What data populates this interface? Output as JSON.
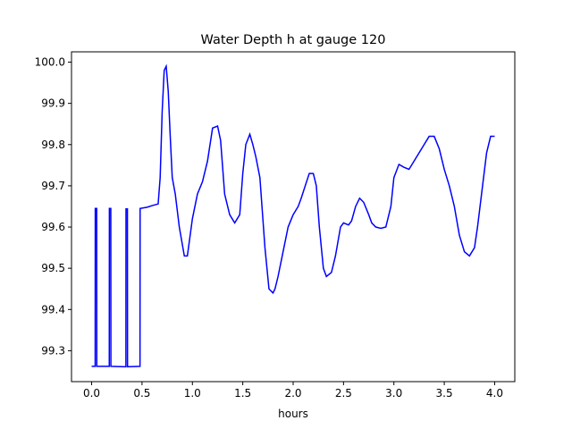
{
  "chart_data": {
    "type": "line",
    "title": "Water Depth h at gauge 120",
    "xlabel": "hours",
    "ylabel": "",
    "xlim": [
      -0.2,
      4.2
    ],
    "ylim": [
      99.225,
      100.025
    ],
    "xticks": [
      0.0,
      0.5,
      1.0,
      1.5,
      2.0,
      2.5,
      3.0,
      3.5,
      4.0
    ],
    "xtick_labels": [
      "0.0",
      "0.5",
      "1.0",
      "1.5",
      "2.0",
      "2.5",
      "3.0",
      "3.5",
      "4.0"
    ],
    "yticks": [
      99.3,
      99.4,
      99.5,
      99.6,
      99.7,
      99.8,
      99.9,
      100.0
    ],
    "ytick_labels": [
      "99.3",
      "99.4",
      "99.5",
      "99.6",
      "99.7",
      "99.8",
      "99.9",
      "100.0"
    ],
    "grid": false,
    "legend": "none",
    "series": [
      {
        "color": "#0000ff",
        "x": [
          0.0,
          0.035,
          0.036,
          0.05,
          0.051,
          0.175,
          0.176,
          0.19,
          0.191,
          0.34,
          0.341,
          0.355,
          0.356,
          0.48,
          0.481,
          0.55,
          0.6,
          0.66,
          0.68,
          0.7,
          0.72,
          0.74,
          0.76,
          0.78,
          0.8,
          0.83,
          0.87,
          0.92,
          0.95,
          1.0,
          1.05,
          1.1,
          1.15,
          1.2,
          1.25,
          1.28,
          1.32,
          1.37,
          1.42,
          1.47,
          1.5,
          1.53,
          1.57,
          1.6,
          1.63,
          1.67,
          1.72,
          1.76,
          1.8,
          1.82,
          1.85,
          1.9,
          1.95,
          2.0,
          2.05,
          2.08,
          2.12,
          2.16,
          2.2,
          2.23,
          2.26,
          2.3,
          2.33,
          2.38,
          2.42,
          2.47,
          2.5,
          2.55,
          2.58,
          2.62,
          2.66,
          2.7,
          2.75,
          2.78,
          2.82,
          2.87,
          2.92,
          2.97,
          3.0,
          3.05,
          3.1,
          3.15,
          3.2,
          3.25,
          3.3,
          3.35,
          3.4,
          3.45,
          3.5,
          3.55,
          3.6,
          3.65,
          3.7,
          3.75,
          3.8,
          3.83,
          3.87,
          3.92,
          3.96,
          4.0
        ],
        "y": [
          99.262,
          99.262,
          99.645,
          99.645,
          99.262,
          99.262,
          99.645,
          99.645,
          99.262,
          99.261,
          99.644,
          99.644,
          99.261,
          99.262,
          99.645,
          99.648,
          99.652,
          99.656,
          99.72,
          99.88,
          99.98,
          99.99,
          99.93,
          99.82,
          99.72,
          99.68,
          99.6,
          99.53,
          99.53,
          99.62,
          99.68,
          99.71,
          99.76,
          99.84,
          99.845,
          99.81,
          99.68,
          99.63,
          99.61,
          99.63,
          99.73,
          99.8,
          99.825,
          99.8,
          99.77,
          99.72,
          99.55,
          99.45,
          99.44,
          99.45,
          99.48,
          99.54,
          99.6,
          99.63,
          99.65,
          99.67,
          99.7,
          99.73,
          99.73,
          99.7,
          99.6,
          99.5,
          99.48,
          99.49,
          99.53,
          99.6,
          99.61,
          99.605,
          99.615,
          99.65,
          99.67,
          99.66,
          99.63,
          99.61,
          99.6,
          99.597,
          99.6,
          99.65,
          99.72,
          99.752,
          99.745,
          99.74,
          99.76,
          99.78,
          99.8,
          99.82,
          99.82,
          99.79,
          99.74,
          99.7,
          99.65,
          99.58,
          99.54,
          99.53,
          99.55,
          99.6,
          99.68,
          99.78,
          99.82,
          99.82
        ]
      }
    ]
  }
}
